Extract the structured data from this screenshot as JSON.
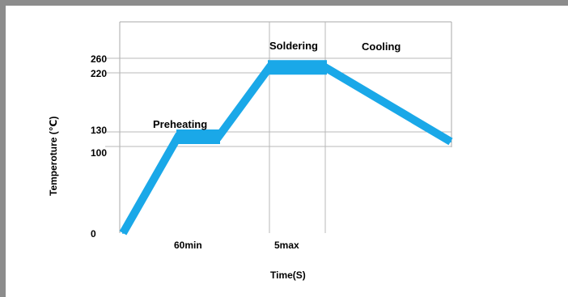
{
  "chart_data": {
    "type": "line",
    "title": "",
    "xlabel": "Time(S)",
    "ylabel": "Temperoture (℃)",
    "y_tick_labels": [
      "260",
      "220",
      "130",
      "100",
      "0"
    ],
    "y_ticks": [
      260,
      220,
      130,
      100,
      0
    ],
    "x_tick_labels": [
      "60min",
      "5max"
    ],
    "phase_labels": [
      "Preheating",
      "Soldering",
      "Cooling"
    ],
    "x": [
      0,
      1,
      1.25,
      2,
      2.3,
      4.5
    ],
    "y": [
      0,
      120,
      120,
      235,
      235,
      110
    ],
    "series": [
      {
        "values": [
          0,
          120,
          120,
          235,
          235,
          110
        ]
      }
    ],
    "ylim": [
      0,
      300
    ],
    "grid": true,
    "colors": {
      "series": "#1aa8e8",
      "grid": "#b8b8b8",
      "border": "#8c8c8c",
      "plot_frame": "#a8a8a8",
      "background": "#ffffff"
    }
  }
}
